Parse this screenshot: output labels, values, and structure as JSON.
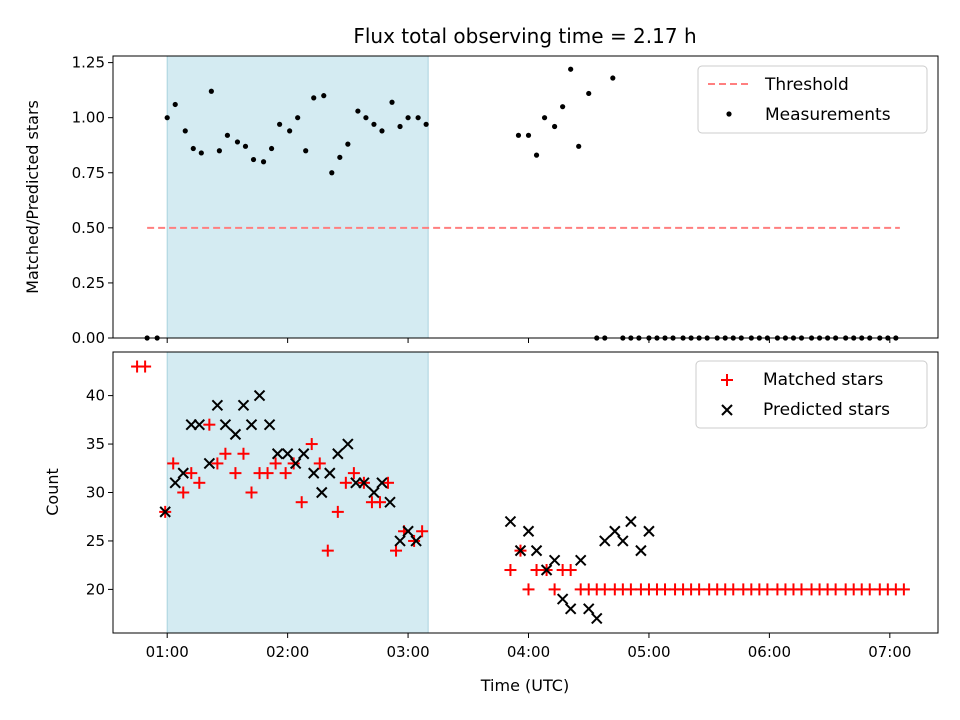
{
  "figure": {
    "title": "Flux total observing time = 2.17 h",
    "xlabel": "Time (UTC)",
    "x_ticks": [
      "01:00",
      "02:00",
      "03:00",
      "04:00",
      "05:00",
      "06:00",
      "07:00"
    ]
  },
  "colors": {
    "shade": "#d4ebf2",
    "threshold": "#ff7f7f",
    "measurements": "#000000",
    "matched": "#ff0000",
    "predicted": "#000000"
  },
  "chart_data": [
    {
      "type": "scatter",
      "panel": "top",
      "ylabel": "Matched/Predicted stars",
      "xlim": [
        "00:33",
        "07:24"
      ],
      "ylim": [
        0,
        1.28
      ],
      "y_ticks": [
        "0.00",
        "0.25",
        "0.50",
        "0.75",
        "1.00",
        "1.25"
      ],
      "shaded_interval": [
        "01:00",
        "03:10"
      ],
      "threshold": {
        "name": "Threshold",
        "value": 0.5,
        "x_range": [
          "00:50",
          "07:05"
        ],
        "style": "dashed"
      },
      "legend": {
        "placement": "top-right",
        "entries": [
          "Threshold",
          "Measurements"
        ]
      },
      "series": [
        {
          "name": "Measurements",
          "x": [
            "00:50",
            "00:55",
            "01:00",
            "01:04",
            "01:09",
            "01:13",
            "01:17",
            "01:22",
            "01:26",
            "01:30",
            "01:35",
            "01:39",
            "01:43",
            "01:48",
            "01:52",
            "01:56",
            "02:01",
            "02:05",
            "02:09",
            "02:13",
            "02:18",
            "02:22",
            "02:26",
            "02:30",
            "02:35",
            "02:39",
            "02:43",
            "02:47",
            "02:52",
            "02:56",
            "03:00",
            "03:05",
            "03:09",
            "03:55",
            "04:00",
            "04:04",
            "04:08",
            "04:13",
            "04:17",
            "04:21",
            "04:25",
            "04:30",
            "04:34",
            "04:38",
            "04:42",
            "04:47",
            "04:51",
            "04:55",
            "05:00",
            "05:04",
            "05:08",
            "05:12",
            "05:17",
            "05:21",
            "05:25",
            "05:29",
            "05:34",
            "05:38",
            "05:42",
            "05:46",
            "05:51",
            "05:55",
            "05:59",
            "06:04",
            "06:08",
            "06:12",
            "06:16",
            "06:21",
            "06:25",
            "06:29",
            "06:33",
            "06:38",
            "06:42",
            "06:46",
            "06:50",
            "06:55",
            "06:59",
            "07:03"
          ],
          "y": [
            0,
            0,
            1.0,
            1.06,
            0.94,
            0.86,
            0.84,
            1.12,
            0.85,
            0.92,
            0.89,
            0.87,
            0.81,
            0.8,
            0.86,
            0.97,
            0.94,
            1.0,
            0.85,
            1.09,
            1.1,
            0.75,
            0.82,
            0.88,
            1.03,
            1.0,
            0.97,
            0.94,
            1.07,
            0.96,
            1.0,
            1.0,
            0.97,
            0.92,
            0.92,
            0.83,
            1.0,
            0.96,
            1.05,
            1.22,
            0.87,
            1.11,
            0,
            0,
            1.18,
            0,
            0,
            0,
            0,
            0,
            0,
            0,
            0,
            0,
            0,
            0,
            0,
            0,
            0,
            0,
            0,
            0,
            0,
            0,
            0,
            0,
            0,
            0,
            0,
            0,
            0,
            0,
            0,
            0,
            0,
            0,
            0,
            0
          ]
        }
      ]
    },
    {
      "type": "scatter",
      "panel": "bottom",
      "ylabel": "Count",
      "xlim": [
        "00:33",
        "07:24"
      ],
      "ylim": [
        15.5,
        44.5
      ],
      "y_ticks": [
        "20",
        "25",
        "30",
        "35",
        "40"
      ],
      "shaded_interval": [
        "01:00",
        "03:10"
      ],
      "legend": {
        "placement": "top-right",
        "entries": [
          "Matched stars",
          "Predicted stars"
        ]
      },
      "series": [
        {
          "name": "Matched stars",
          "marker": "plus",
          "x": [
            "00:45",
            "00:49",
            "00:59",
            "01:03",
            "01:08",
            "01:12",
            "01:16",
            "01:21",
            "01:25",
            "01:29",
            "01:34",
            "01:38",
            "01:42",
            "01:46",
            "01:50",
            "01:54",
            "01:59",
            "02:03",
            "02:07",
            "02:12",
            "02:16",
            "02:20",
            "02:25",
            "02:29",
            "02:33",
            "02:38",
            "02:42",
            "02:46",
            "02:50",
            "02:54",
            "02:58",
            "03:03",
            "03:07",
            "03:51",
            "03:56",
            "04:00",
            "04:04",
            "04:09",
            "04:13",
            "04:17",
            "04:21",
            "04:26",
            "04:30",
            "04:34",
            "04:38",
            "04:43",
            "04:47",
            "04:51",
            "04:56",
            "05:00",
            "05:04",
            "05:08",
            "05:13",
            "05:17",
            "05:21",
            "05:25",
            "05:30",
            "05:34",
            "05:38",
            "05:42",
            "05:47",
            "05:51",
            "05:55",
            "05:59",
            "06:04",
            "06:08",
            "06:12",
            "06:16",
            "06:21",
            "06:25",
            "06:29",
            "06:33",
            "06:38",
            "06:42",
            "06:46",
            "06:50",
            "06:55",
            "06:59",
            "07:03",
            "07:07"
          ],
          "y": [
            43,
            43,
            28,
            33,
            30,
            32,
            31,
            37,
            33,
            34,
            32,
            34,
            30,
            32,
            32,
            33,
            32,
            33,
            29,
            35,
            33,
            24,
            28,
            31,
            32,
            31,
            29,
            29,
            31,
            24,
            26,
            25,
            26,
            22,
            24,
            20,
            22,
            22,
            20,
            22,
            22,
            20,
            20,
            20,
            20,
            20,
            20,
            20,
            20,
            20,
            20,
            20,
            20,
            20,
            20,
            20,
            20,
            20,
            20,
            20,
            20,
            20,
            20,
            20,
            20,
            20,
            20,
            20,
            20,
            20,
            20,
            20,
            20,
            20,
            20,
            20,
            20,
            20,
            20,
            20
          ]
        },
        {
          "name": "Predicted stars",
          "marker": "x",
          "x": [
            "00:59",
            "01:04",
            "01:08",
            "01:12",
            "01:16",
            "01:21",
            "01:25",
            "01:29",
            "01:34",
            "01:38",
            "01:42",
            "01:46",
            "01:51",
            "01:55",
            "02:00",
            "02:04",
            "02:08",
            "02:13",
            "02:17",
            "02:21",
            "02:25",
            "02:30",
            "02:34",
            "02:38",
            "02:43",
            "02:47",
            "02:51",
            "02:56",
            "03:00",
            "03:04",
            "03:51",
            "03:56",
            "04:00",
            "04:04",
            "04:09",
            "04:13",
            "04:17",
            "04:21",
            "04:26",
            "04:30",
            "04:34",
            "04:38",
            "04:43",
            "04:47",
            "04:51",
            "04:56",
            "05:00"
          ],
          "y": [
            28,
            31,
            32,
            37,
            37,
            33,
            39,
            37,
            36,
            39,
            37,
            40,
            37,
            34,
            34,
            33,
            34,
            32,
            30,
            32,
            34,
            35,
            31,
            31,
            30,
            31,
            29,
            25,
            26,
            25,
            27,
            24,
            26,
            24,
            22,
            23,
            19,
            18,
            23,
            18,
            17,
            25,
            26,
            25,
            27,
            24,
            26
          ]
        }
      ]
    }
  ]
}
